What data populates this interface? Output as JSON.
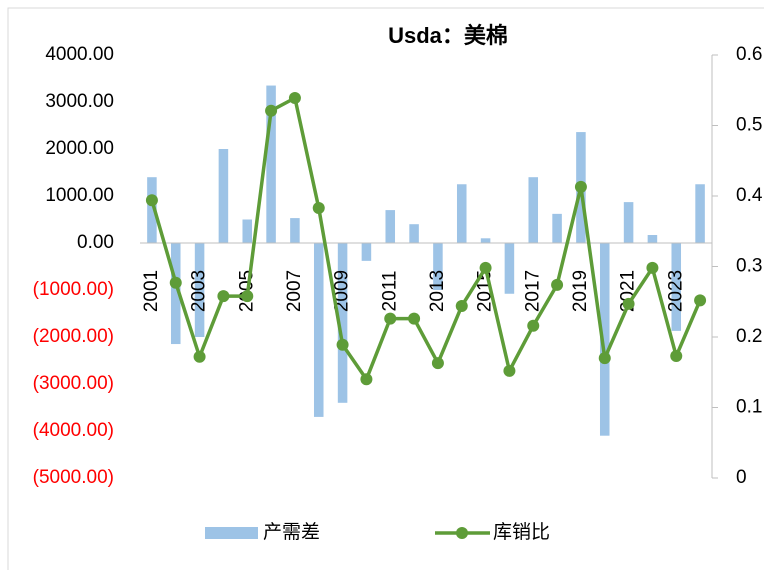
{
  "chart_data": {
    "type": "bar_line",
    "title": "Usda：美棉",
    "categories": [
      "2001",
      null,
      "2003",
      null,
      "2005",
      null,
      "2007",
      null,
      "2009",
      null,
      "2011",
      null,
      "2013",
      null,
      "2015",
      null,
      "2017",
      null,
      "2019",
      null,
      "2021",
      null,
      "2023",
      null
    ],
    "series": [
      {
        "name": "产需差",
        "type": "bar",
        "color": "#9dc3e6",
        "axis": "y",
        "values": [
          1400,
          -2150,
          -2000,
          2000,
          500,
          3350,
          530,
          -3700,
          -3400,
          -380,
          700,
          400,
          -1000,
          1250,
          100,
          -1080,
          1400,
          620,
          2360,
          -4100,
          870,
          170,
          -1870,
          1250
        ]
      },
      {
        "name": "库销比",
        "type": "line",
        "color": "#5e9c38",
        "axis": "y2",
        "values": [
          0.394,
          0.277,
          0.172,
          0.258,
          0.258,
          0.521,
          0.539,
          0.383,
          0.189,
          0.14,
          0.226,
          0.226,
          0.163,
          0.244,
          0.298,
          0.152,
          0.216,
          0.274,
          0.413,
          0.17,
          0.247,
          0.298,
          0.173,
          0.252
        ]
      }
    ],
    "ylim": [
      -5000,
      4000
    ],
    "yticks": [
      {
        "value": 4000,
        "label": "4000.00"
      },
      {
        "value": 3000,
        "label": "3000.00"
      },
      {
        "value": 2000,
        "label": "2000.00"
      },
      {
        "value": 1000,
        "label": "1000.00"
      },
      {
        "value": 0,
        "label": "0.00"
      },
      {
        "value": -1000,
        "label": "(1000.00)"
      },
      {
        "value": -2000,
        "label": "(2000.00)"
      },
      {
        "value": -3000,
        "label": "(3000.00)"
      },
      {
        "value": -4000,
        "label": "(4000.00)"
      },
      {
        "value": -5000,
        "label": "(5000.00)"
      }
    ],
    "negative_tick_color": "#ff0000",
    "y2lim": [
      0,
      0.6
    ],
    "y2ticks": [
      0,
      0.1,
      0.2,
      0.3,
      0.4,
      0.5,
      0.6
    ],
    "legend": "bottom"
  }
}
